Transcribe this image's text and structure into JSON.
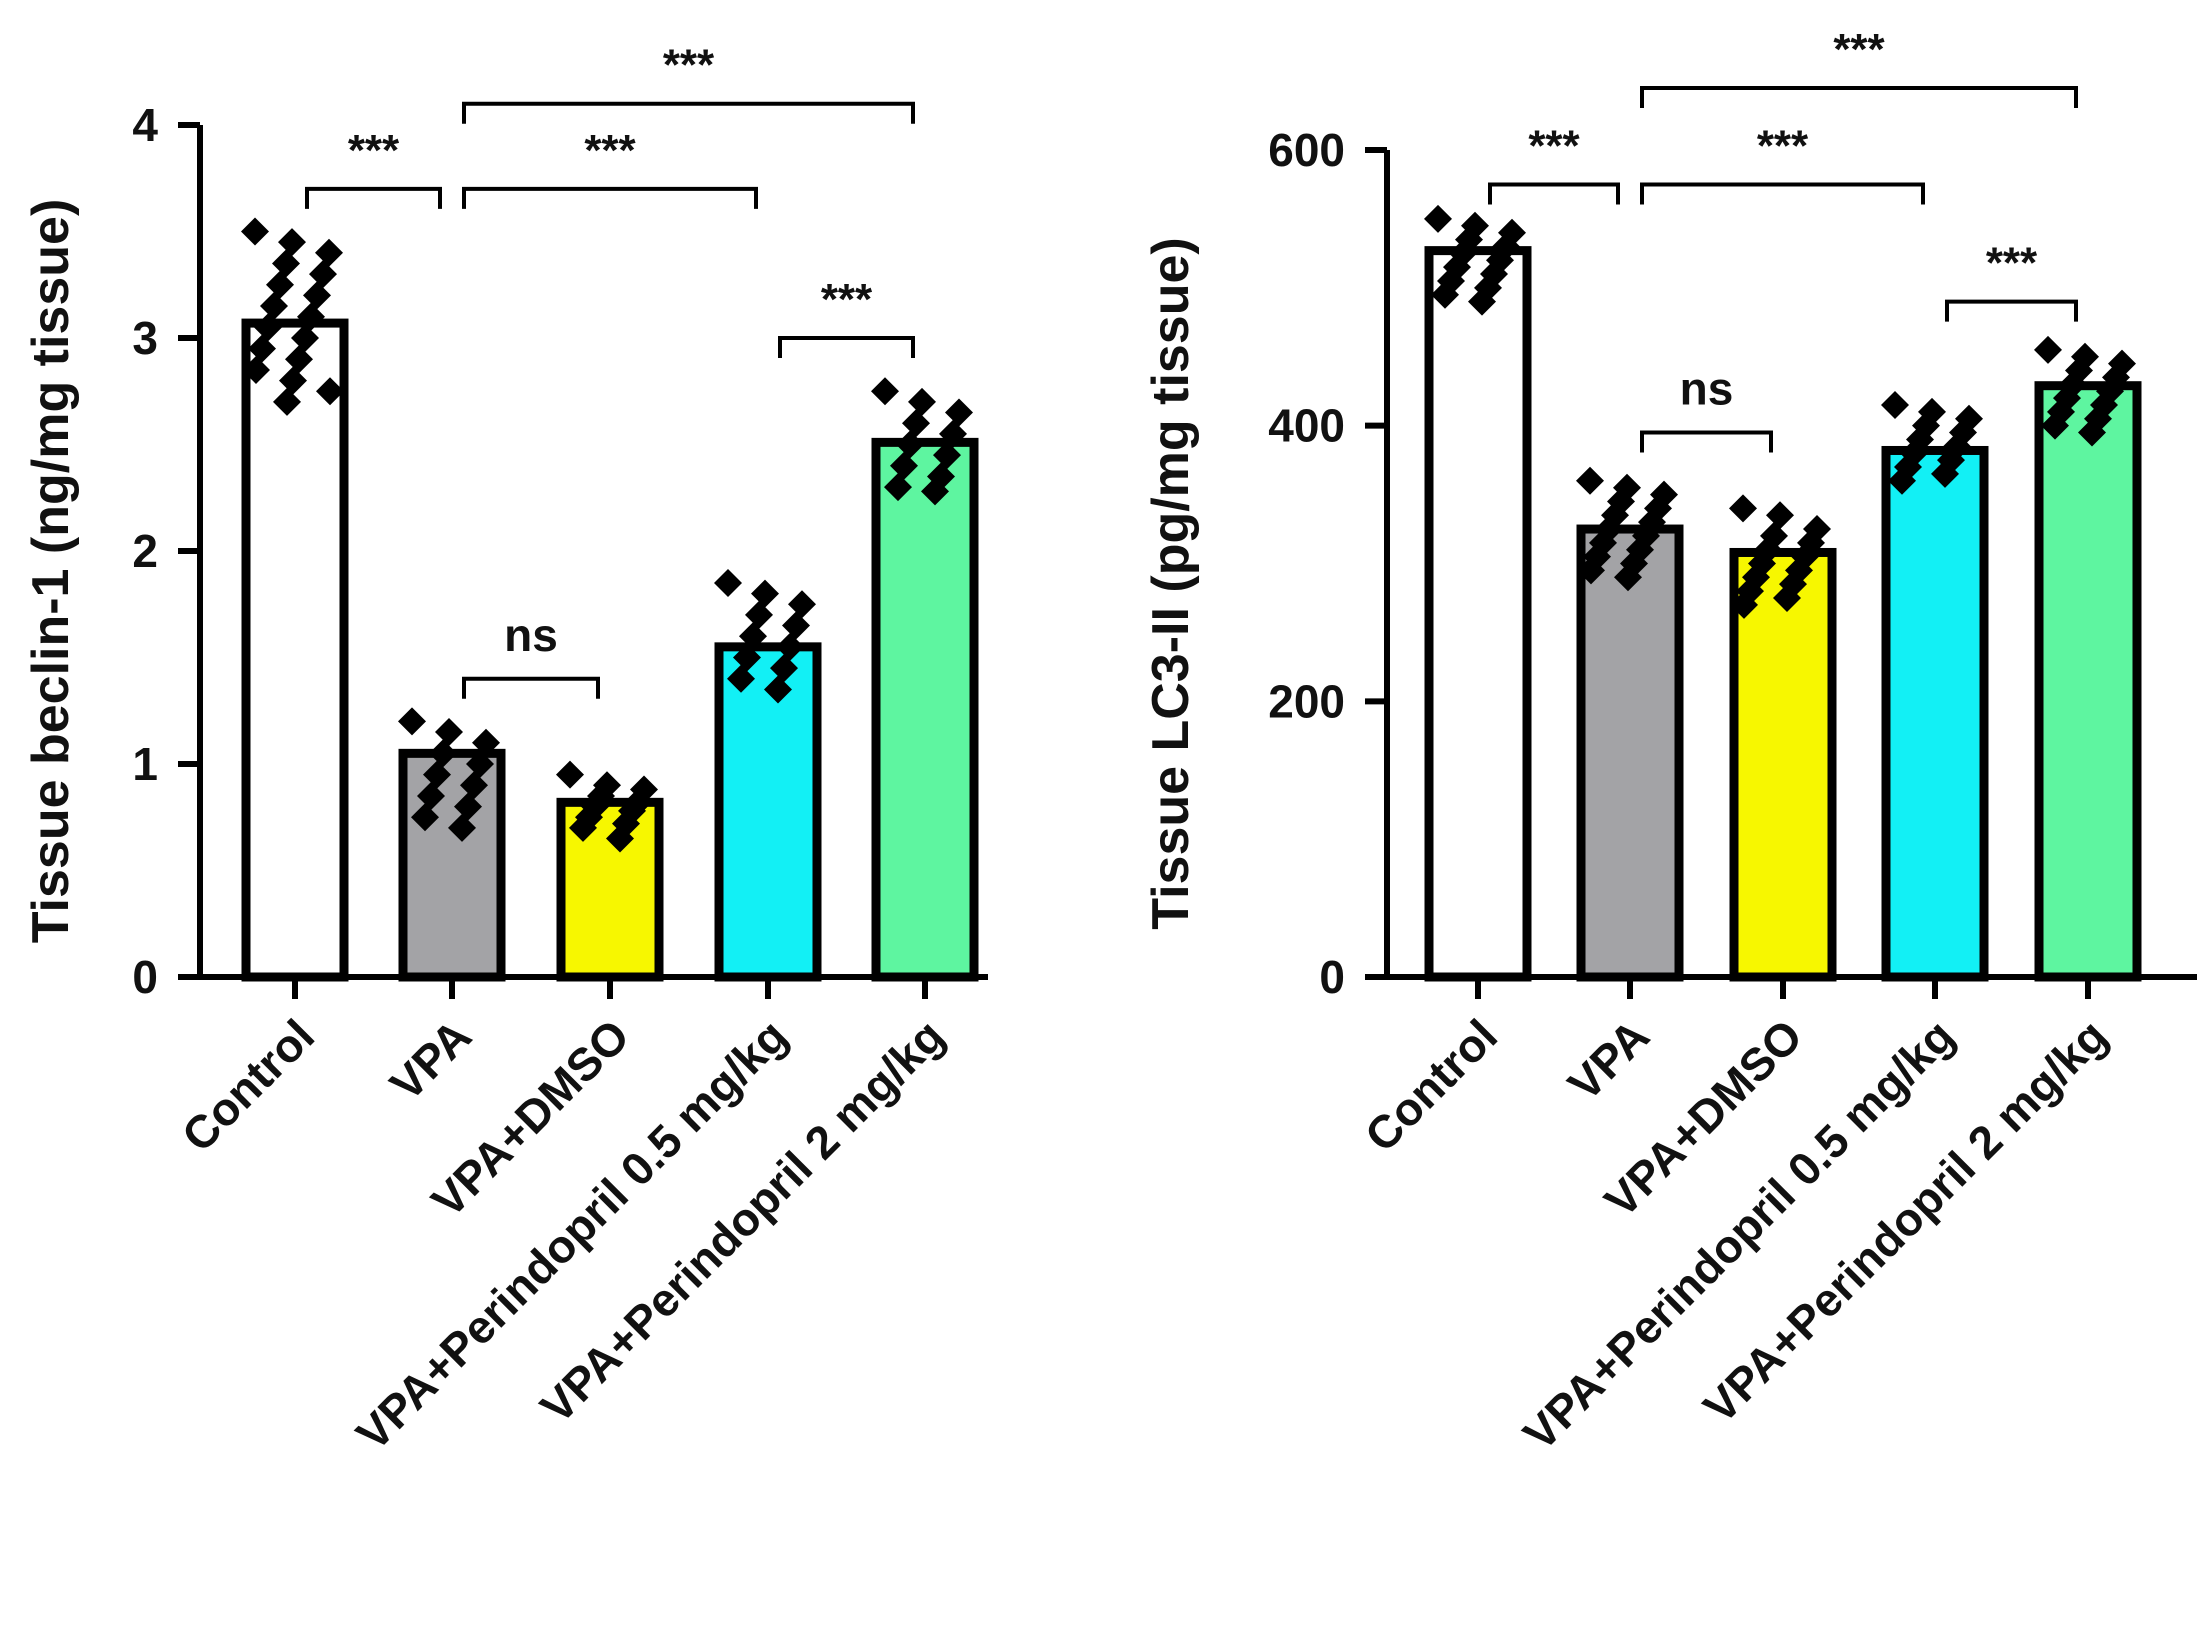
{
  "chart_data": [
    {
      "type": "bar",
      "title": "",
      "xlabel": "",
      "ylabel": "Tissue beclin-1 (ng/mg tissue)",
      "ylim": [
        0,
        4
      ],
      "yticks": [
        0,
        1,
        2,
        3,
        4
      ],
      "ytick_labels": [
        "0",
        "1",
        "2",
        "3",
        "4"
      ],
      "categories": [
        "Control",
        "VPA",
        "VPA+DMSO",
        "VPA+Perindopril 0.5 mg/kg",
        "VPA+Perindopril 2 mg/kg"
      ],
      "values": [
        3.07,
        1.05,
        0.82,
        1.55,
        2.51
      ],
      "colors": [
        "#ffffff",
        "#a3a3a6",
        "#f7f700",
        "#12f0f5",
        "#5ef5a0"
      ],
      "points": [
        [
          3.5,
          3.45,
          3.4,
          3.35,
          3.3,
          3.25,
          3.2,
          3.15,
          3.1,
          3.05,
          3.0,
          2.95,
          2.9,
          2.85,
          2.8,
          2.75,
          2.7
        ],
        [
          1.2,
          1.15,
          1.1,
          1.05,
          1.0,
          0.95,
          0.9,
          0.85,
          0.8,
          0.75,
          0.7
        ],
        [
          0.95,
          0.9,
          0.88,
          0.85,
          0.82,
          0.8,
          0.78,
          0.75,
          0.72,
          0.7,
          0.65
        ],
        [
          1.85,
          1.8,
          1.75,
          1.7,
          1.65,
          1.6,
          1.55,
          1.5,
          1.45,
          1.4,
          1.35
        ],
        [
          2.75,
          2.7,
          2.65,
          2.6,
          2.55,
          2.5,
          2.45,
          2.4,
          2.35,
          2.3,
          2.28
        ]
      ],
      "comparisons": [
        {
          "from": 0,
          "to": 1,
          "label": "***",
          "level": 3.7
        },
        {
          "from": 1,
          "to": 3,
          "label": "***",
          "level": 3.7
        },
        {
          "from": 1,
          "to": 4,
          "label": "***",
          "level": 4.1
        },
        {
          "from": 3,
          "to": 4,
          "label": "***",
          "level": 3.0
        },
        {
          "from": 1,
          "to": 2,
          "label": "ns",
          "level": 1.4
        }
      ]
    },
    {
      "type": "bar",
      "title": "",
      "xlabel": "",
      "ylabel": "Tissue LC3-II (pg/mg tissue)",
      "ylim": [
        0,
        600
      ],
      "yticks": [
        0,
        200,
        400,
        600
      ],
      "ytick_labels": [
        "0",
        "200",
        "400",
        "600"
      ],
      "categories": [
        "Control",
        "VPA",
        "VPA+DMSO",
        "VPA+Perindopril 0.5 mg/kg",
        "VPA+Perindopril 2 mg/kg"
      ],
      "values": [
        527,
        325,
        308,
        382,
        429
      ],
      "colors": [
        "#ffffff",
        "#a3a3a6",
        "#f7f700",
        "#12f0f5",
        "#5ef5a0"
      ],
      "points": [
        [
          550,
          545,
          540,
          535,
          530,
          525,
          520,
          515,
          510,
          505,
          500,
          495,
          490
        ],
        [
          360,
          355,
          350,
          345,
          340,
          335,
          330,
          325,
          320,
          315,
          310,
          305,
          300,
          295,
          290
        ],
        [
          340,
          335,
          325,
          320,
          315,
          310,
          305,
          300,
          295,
          290,
          285,
          280,
          275,
          270
        ],
        [
          415,
          410,
          405,
          400,
          395,
          390,
          385,
          380,
          375,
          370,
          365,
          360
        ],
        [
          455,
          450,
          445,
          440,
          435,
          430,
          425,
          420,
          415,
          410,
          405,
          400,
          395
        ]
      ],
      "comparisons": [
        {
          "from": 0,
          "to": 1,
          "label": "***",
          "level": 575
        },
        {
          "from": 1,
          "to": 3,
          "label": "***",
          "level": 575
        },
        {
          "from": 1,
          "to": 4,
          "label": "***",
          "level": 645
        },
        {
          "from": 3,
          "to": 4,
          "label": "***",
          "level": 490
        },
        {
          "from": 1,
          "to": 2,
          "label": "ns",
          "level": 395
        }
      ]
    }
  ]
}
